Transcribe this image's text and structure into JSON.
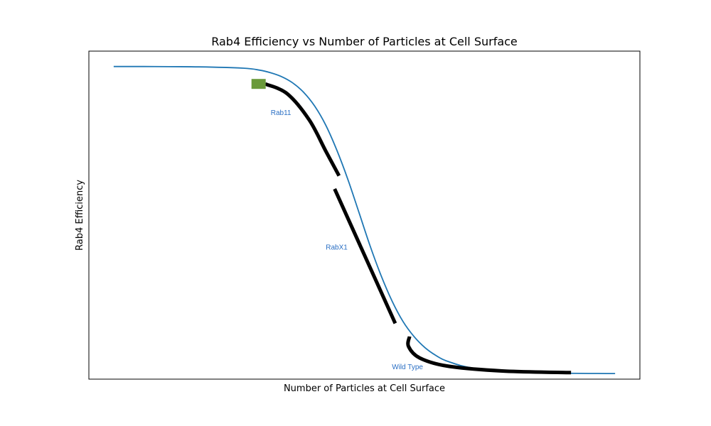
{
  "chart_data": {
    "type": "line",
    "title": "Rab4 Efficiency vs Number of Particles at Cell Surface",
    "xlabel": "Number of Particles at Cell Surface",
    "ylabel": "Rab4 Efficiency",
    "xlim": [
      0,
      100
    ],
    "ylim": [
      0,
      100
    ],
    "x_ticks": false,
    "y_ticks": false,
    "grid": false,
    "colors": {
      "curve": "#1f77b4",
      "segments": "#000000",
      "marker": "#6a9a3a",
      "annotation": "#2a6fc4"
    },
    "series": [
      {
        "x": [
          4.5,
          10,
          20,
          28,
          31,
          33,
          35,
          37,
          39,
          41,
          43,
          45,
          47,
          49,
          51,
          53,
          55,
          57,
          59,
          61,
          63,
          65,
          70,
          80,
          95.5
        ],
        "values": [
          95.3,
          95.3,
          95.2,
          94.8,
          94.2,
          93.4,
          92.2,
          90.3,
          87.4,
          83.2,
          77.4,
          69.8,
          60.9,
          50.9,
          40.8,
          31.7,
          23.9,
          17.6,
          13.0,
          9.6,
          7.2,
          5.5,
          3.3,
          2.0,
          1.7
        ]
      }
    ],
    "segments": [
      {
        "x": [
          32,
          36,
          40,
          43,
          45.4
        ],
        "values": [
          90,
          87,
          79,
          69.5,
          62
        ]
      },
      {
        "x": [
          44.6,
          55.6
        ],
        "values": [
          58,
          17
        ]
      },
      {
        "x": [
          58.2,
          58,
          60,
          65,
          75,
          87.5
        ],
        "values": [
          13,
          10,
          6.5,
          4,
          2.5,
          2
        ]
      }
    ],
    "markers": [
      {
        "x": 30.8,
        "y": 90
      }
    ],
    "annotations": [
      {
        "text": "Rab11",
        "x": 33,
        "y": 80.5
      },
      {
        "text": "RabX1",
        "x": 43,
        "y": 39.5
      },
      {
        "text": "Wild Type",
        "x": 55,
        "y": 3
      }
    ]
  }
}
